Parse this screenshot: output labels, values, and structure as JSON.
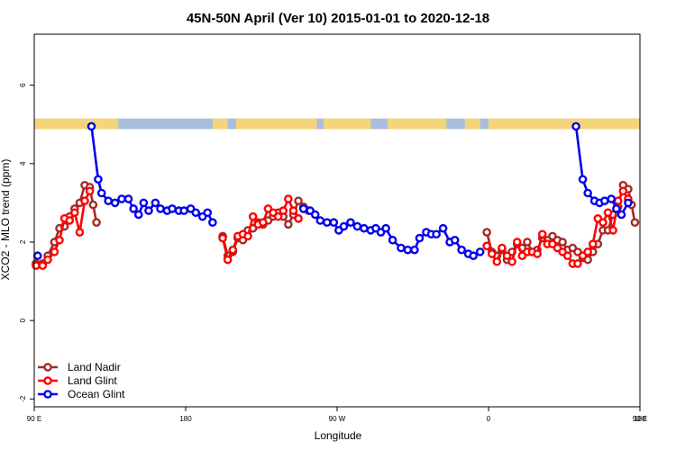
{
  "chart_data": {
    "type": "line",
    "title": "45N-50N April (Ver 10)   2015-01-01 to 2020-12-18",
    "xlabel": "Longitude",
    "ylabel": "XCO2 - MLO trend (ppm)",
    "xlim": [
      90,
      450
    ],
    "ylim": [
      -2.2,
      7.3
    ],
    "x_ticks": [
      {
        "value": 90,
        "label": "90 E"
      },
      {
        "value": 180,
        "label": "180"
      },
      {
        "value": 270,
        "label": "90 W"
      },
      {
        "value": 360,
        "label": "0"
      },
      {
        "value": 450,
        "label": "90 E"
      },
      {
        "value": 540,
        "label": "180"
      }
    ],
    "y_ticks": [
      {
        "value": -2,
        "label": "-2"
      },
      {
        "value": 0,
        "label": "0"
      },
      {
        "value": 2,
        "label": "2"
      },
      {
        "value": 4,
        "label": "4"
      },
      {
        "value": 6,
        "label": "6"
      }
    ],
    "map_strip": {
      "y_range": [
        4.88,
        5.15
      ],
      "land_color": "#F5D57A",
      "ocean_color": "#A9BEDF"
    },
    "legend_position": "bottom-left",
    "series": [
      {
        "name": "Land Nadir",
        "color": "#A52A2A",
        "points": [
          [
            91,
            1.45
          ],
          [
            95,
            1.45
          ],
          [
            98,
            1.65
          ],
          [
            102,
            2.0
          ],
          [
            105,
            2.35
          ],
          [
            108,
            2.4
          ],
          [
            111,
            2.65
          ],
          [
            114,
            2.85
          ],
          [
            117,
            3.0
          ],
          [
            120,
            3.45
          ],
          [
            123,
            3.4
          ],
          [
            125,
            2.95
          ],
          [
            127,
            2.5
          ],
          [
            202,
            2.15
          ],
          [
            205,
            1.65
          ],
          [
            208,
            1.75
          ],
          [
            211,
            2.1
          ],
          [
            214,
            2.05
          ],
          [
            217,
            2.3
          ],
          [
            220,
            2.35
          ],
          [
            223,
            2.5
          ],
          [
            226,
            2.45
          ],
          [
            229,
            2.55
          ],
          [
            232,
            2.65
          ],
          [
            235,
            2.75
          ],
          [
            238,
            2.65
          ],
          [
            241,
            2.45
          ],
          [
            244,
            2.7
          ],
          [
            247,
            3.05
          ],
          [
            250,
            2.9
          ],
          [
            253,
            2.8
          ],
          [
            359,
            2.25
          ],
          [
            362,
            1.75
          ],
          [
            365,
            1.65
          ],
          [
            368,
            1.8
          ],
          [
            371,
            1.55
          ],
          [
            374,
            1.75
          ],
          [
            377,
            1.95
          ],
          [
            380,
            1.85
          ],
          [
            383,
            2.0
          ],
          [
            386,
            1.75
          ],
          [
            389,
            1.8
          ],
          [
            392,
            2.1
          ],
          [
            395,
            2.05
          ],
          [
            398,
            2.15
          ],
          [
            401,
            2.05
          ],
          [
            404,
            2.0
          ],
          [
            407,
            1.8
          ],
          [
            410,
            1.85
          ],
          [
            413,
            1.75
          ],
          [
            416,
            1.6
          ],
          [
            419,
            1.55
          ],
          [
            422,
            1.75
          ],
          [
            425,
            1.95
          ],
          [
            428,
            2.3
          ],
          [
            431,
            2.3
          ],
          [
            434,
            2.7
          ],
          [
            437,
            2.9
          ],
          [
            440,
            3.45
          ],
          [
            443,
            3.35
          ],
          [
            445,
            2.95
          ],
          [
            447,
            2.5
          ]
        ]
      },
      {
        "name": "Land Glint",
        "color": "#FF0000",
        "points": [
          [
            91,
            1.4
          ],
          [
            95,
            1.4
          ],
          [
            98,
            1.55
          ],
          [
            102,
            1.75
          ],
          [
            105,
            2.05
          ],
          [
            108,
            2.6
          ],
          [
            111,
            2.55
          ],
          [
            114,
            2.75
          ],
          [
            117,
            2.25
          ],
          [
            120,
            3.05
          ],
          [
            123,
            3.3
          ],
          [
            202,
            2.1
          ],
          [
            205,
            1.55
          ],
          [
            208,
            1.8
          ],
          [
            211,
            2.15
          ],
          [
            214,
            2.2
          ],
          [
            217,
            2.15
          ],
          [
            220,
            2.65
          ],
          [
            223,
            2.45
          ],
          [
            226,
            2.5
          ],
          [
            229,
            2.85
          ],
          [
            232,
            2.75
          ],
          [
            235,
            2.65
          ],
          [
            238,
            2.8
          ],
          [
            241,
            3.1
          ],
          [
            244,
            2.8
          ],
          [
            247,
            2.6
          ],
          [
            359,
            1.9
          ],
          [
            362,
            1.7
          ],
          [
            365,
            1.5
          ],
          [
            368,
            1.85
          ],
          [
            371,
            1.65
          ],
          [
            374,
            1.5
          ],
          [
            377,
            2.0
          ],
          [
            380,
            1.65
          ],
          [
            383,
            1.75
          ],
          [
            386,
            1.75
          ],
          [
            389,
            1.7
          ],
          [
            392,
            2.2
          ],
          [
            395,
            1.95
          ],
          [
            398,
            1.95
          ],
          [
            401,
            1.85
          ],
          [
            404,
            1.75
          ],
          [
            407,
            1.65
          ],
          [
            410,
            1.45
          ],
          [
            413,
            1.45
          ],
          [
            416,
            1.65
          ],
          [
            419,
            1.75
          ],
          [
            422,
            1.95
          ],
          [
            425,
            2.6
          ],
          [
            428,
            2.5
          ],
          [
            431,
            2.75
          ],
          [
            434,
            2.3
          ],
          [
            437,
            3.05
          ],
          [
            440,
            3.3
          ],
          [
            443,
            3.1
          ]
        ]
      },
      {
        "name": "Ocean Glint",
        "color": "#0000EE",
        "points": [
          [
            92,
            1.65
          ],
          [
            124,
            4.95
          ],
          [
            128,
            3.6
          ],
          [
            130,
            3.25
          ],
          [
            134,
            3.05
          ],
          [
            138,
            3.0
          ],
          [
            142,
            3.1
          ],
          [
            146,
            3.1
          ],
          [
            149,
            2.85
          ],
          [
            152,
            2.7
          ],
          [
            155,
            3.0
          ],
          [
            158,
            2.8
          ],
          [
            162,
            3.0
          ],
          [
            165,
            2.85
          ],
          [
            169,
            2.8
          ],
          [
            172,
            2.85
          ],
          [
            176,
            2.8
          ],
          [
            179,
            2.8
          ],
          [
            183,
            2.85
          ],
          [
            186,
            2.75
          ],
          [
            190,
            2.65
          ],
          [
            193,
            2.75
          ],
          [
            196,
            2.5
          ],
          [
            250,
            2.85
          ],
          [
            254,
            2.8
          ],
          [
            257,
            2.7
          ],
          [
            260,
            2.55
          ],
          [
            264,
            2.5
          ],
          [
            268,
            2.5
          ],
          [
            271,
            2.3
          ],
          [
            274,
            2.4
          ],
          [
            278,
            2.5
          ],
          [
            282,
            2.4
          ],
          [
            286,
            2.35
          ],
          [
            290,
            2.3
          ],
          [
            293,
            2.35
          ],
          [
            296,
            2.25
          ],
          [
            299,
            2.35
          ],
          [
            303,
            2.05
          ],
          [
            308,
            1.85
          ],
          [
            312,
            1.8
          ],
          [
            316,
            1.8
          ],
          [
            319,
            2.1
          ],
          [
            323,
            2.25
          ],
          [
            326,
            2.2
          ],
          [
            329,
            2.2
          ],
          [
            333,
            2.35
          ],
          [
            337,
            2.0
          ],
          [
            340,
            2.05
          ],
          [
            344,
            1.8
          ],
          [
            348,
            1.7
          ],
          [
            351,
            1.65
          ],
          [
            355,
            1.75
          ],
          [
            412,
            4.95
          ],
          [
            416,
            3.6
          ],
          [
            419,
            3.25
          ],
          [
            423,
            3.05
          ],
          [
            426,
            3.0
          ],
          [
            429,
            3.05
          ],
          [
            433,
            3.1
          ],
          [
            436,
            2.85
          ],
          [
            439,
            2.7
          ],
          [
            443,
            3.0
          ]
        ]
      }
    ]
  }
}
